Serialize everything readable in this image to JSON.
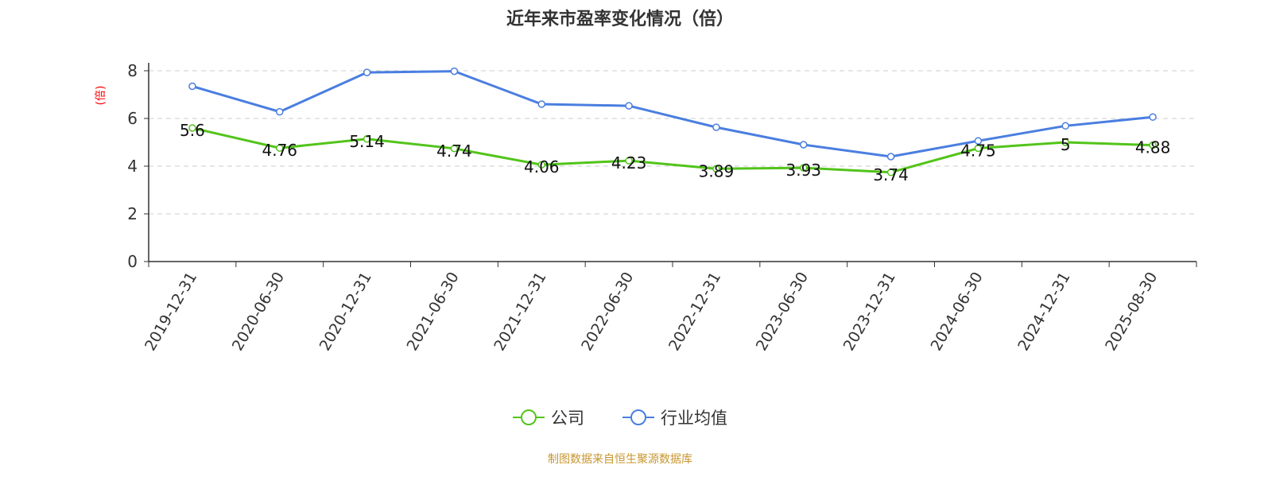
{
  "chart_data": {
    "type": "line",
    "title": "近年来市盈率变化情况（倍）",
    "ylabel": "(倍)",
    "ylabel_color": "#ff0000",
    "ylim": [
      0,
      8
    ],
    "yticks": [
      0,
      2,
      4,
      6,
      8
    ],
    "grid": true,
    "legend_position": "bottom",
    "categories": [
      "2019-12-31",
      "2020-06-30",
      "2020-12-31",
      "2021-06-30",
      "2021-12-31",
      "2022-06-30",
      "2022-12-31",
      "2023-06-30",
      "2023-12-31",
      "2024-06-30",
      "2024-12-31",
      "2025-08-30"
    ],
    "series": [
      {
        "name": "公司",
        "color": "#52c41a",
        "values": [
          5.6,
          4.76,
          5.14,
          4.74,
          4.06,
          4.23,
          3.89,
          3.93,
          3.74,
          4.75,
          5,
          4.88
        ],
        "labels": [
          "5.6",
          "4.76",
          "5.14",
          "4.74",
          "4.06",
          "4.23",
          "3.89",
          "3.93",
          "3.74",
          "4.75",
          "5",
          "4.88"
        ]
      },
      {
        "name": "行业均值",
        "color": "#4a7ee0",
        "values": [
          7.35,
          6.28,
          7.93,
          7.98,
          6.6,
          6.53,
          5.63,
          4.9,
          4.4,
          5.06,
          5.69,
          6.06
        ]
      }
    ]
  },
  "footer": "制图数据来自恒生聚源数据库"
}
